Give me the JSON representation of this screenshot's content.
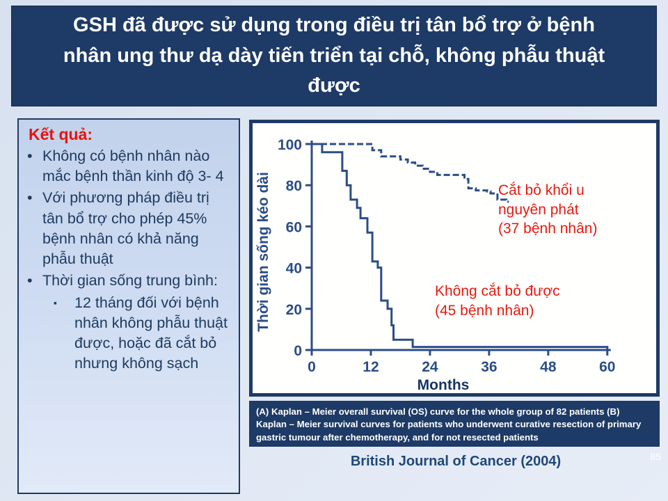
{
  "slide": {
    "title": "GSH đã được sử dụng trong điều trị tân bổ trợ ở bệnh nhân ung thư dạ dày tiến triển tại chỗ, không phẫu thuật được",
    "source": "British Journal of Cancer (2004)",
    "page_number": "85"
  },
  "results_panel": {
    "heading": "Kết quả:",
    "bullet_glyph": "•",
    "sub_bullet_glyph": "▪",
    "items": [
      {
        "level": 1,
        "text": "Không có bệnh nhân nào mắc bệnh thần kinh độ 3- 4"
      },
      {
        "level": 1,
        "text": "Với phương pháp điều trị tân bổ trợ cho phép 45% bệnh nhân có khả năng phẫu thuật"
      },
      {
        "level": 1,
        "text": "Thời gian sống trung bình:"
      },
      {
        "level": 2,
        "text": "12 tháng đối với bệnh nhân không phẫu thuật được, hoặc đã cắt bỏ nhưng không sạch"
      }
    ]
  },
  "figure": {
    "caption": "(A) Kaplan – Meier overall survival (OS) curve for the whole group of 82 patients (B) Kaplan – Meier survival curves for patients who underwent curative resection of primary gastric tumour after chemotherapy, and for not resected patients"
  },
  "chart_data": {
    "type": "line",
    "subtype": "kaplan-meier-step",
    "title": "",
    "xlabel": "Months",
    "ylabel": "Thời gian sống kéo dài",
    "xlim": [
      0,
      60
    ],
    "ylim": [
      0,
      100
    ],
    "xticks": [
      0,
      12,
      24,
      36,
      48,
      60
    ],
    "yticks": [
      0,
      20,
      40,
      60,
      80,
      100
    ],
    "grid": false,
    "legend_position": "inline-annotations",
    "colors": {
      "line": "#2b4d86",
      "annotation": "#e8190e",
      "axis_text": "#2b4d86"
    },
    "series": [
      {
        "name": "Cắt bỏ khổi u nguyên phát (37 bệnh nhân)",
        "label_lines": [
          "Cắt bỏ khổi u",
          "nguyên phát",
          "(37 bệnh nhân)"
        ],
        "style": "dashed",
        "steps": [
          [
            0,
            100
          ],
          [
            12.3,
            97
          ],
          [
            14.1,
            94
          ],
          [
            18,
            92.5
          ],
          [
            19.5,
            91
          ],
          [
            21,
            89.5
          ],
          [
            22.5,
            88
          ],
          [
            24,
            86.5
          ],
          [
            25.5,
            85
          ],
          [
            31,
            83
          ],
          [
            31.8,
            78.5
          ],
          [
            33.3,
            77.5
          ],
          [
            35.6,
            77
          ],
          [
            36.3,
            76
          ],
          [
            37.7,
            73
          ],
          [
            39.5,
            72
          ],
          [
            40,
            72
          ]
        ]
      },
      {
        "name": "Không cắt bỏ được (45 bệnh nhân)",
        "label_lines": [
          "Không cắt bỏ được",
          "(45 bệnh nhân)"
        ],
        "style": "solid",
        "steps": [
          [
            0,
            100
          ],
          [
            2.1,
            96
          ],
          [
            6.2,
            87
          ],
          [
            7.1,
            80
          ],
          [
            7.9,
            73
          ],
          [
            9.2,
            69
          ],
          [
            9.9,
            64
          ],
          [
            11.3,
            57
          ],
          [
            12.3,
            43
          ],
          [
            13.4,
            40
          ],
          [
            14.1,
            24
          ],
          [
            15.4,
            20
          ],
          [
            16.2,
            12
          ],
          [
            16.6,
            5
          ],
          [
            20.5,
            1.5
          ],
          [
            59.3,
            1.5
          ],
          [
            60,
            0.3
          ]
        ]
      }
    ]
  }
}
